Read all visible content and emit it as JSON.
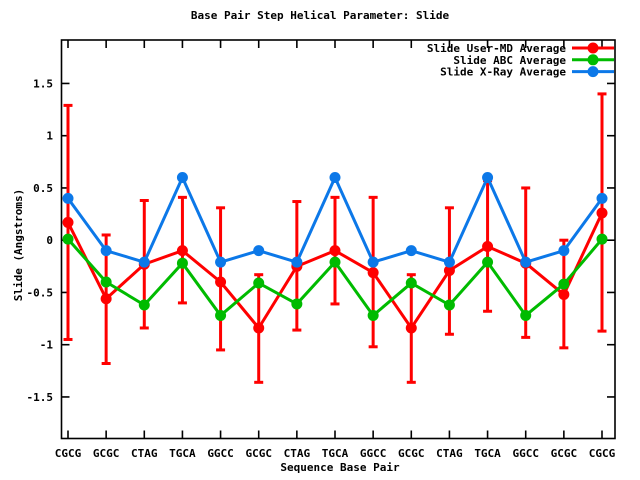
{
  "title": "Base Pair Step Helical Parameter: Slide",
  "axes": {
    "xlabel": "Sequence Base Pair",
    "ylabel": "Slide (Angstroms)"
  },
  "legend": {
    "entries": [
      {
        "label": "Slide User-MD Average",
        "color": "#ff0000"
      },
      {
        "label": "Slide ABC Average",
        "color": "#00bb00"
      },
      {
        "label": "Slide X-Ray Average",
        "color": "#0c78e8"
      }
    ],
    "position": "top-right-inside"
  },
  "chart_data": {
    "type": "line",
    "title": "Base Pair Step Helical Parameter: Slide",
    "xlabel": "Sequence Base Pair",
    "ylabel": "Slide (Angstroms)",
    "categories": [
      "CGCG",
      "GCGC",
      "CTAG",
      "TGCA",
      "GGCC",
      "GCGC",
      "CTAG",
      "TGCA",
      "GGCC",
      "GCGC",
      "CTAG",
      "TGCA",
      "GGCC",
      "GCGC",
      "CGCG"
    ],
    "series": [
      {
        "name": "Slide User-MD Average",
        "color": "#ff0000",
        "marker": "filled-circle",
        "values": [
          0.17,
          -0.56,
          -0.23,
          -0.1,
          -0.4,
          -0.84,
          -0.25,
          -0.1,
          -0.31,
          -0.84,
          -0.29,
          -0.06,
          -0.22,
          -0.52,
          0.26
        ],
        "err_low": [
          -0.95,
          -1.18,
          -0.84,
          -0.6,
          -1.05,
          -1.36,
          -0.86,
          -0.61,
          -1.02,
          -1.36,
          -0.9,
          -0.68,
          -0.93,
          -1.03,
          -0.87
        ],
        "err_high": [
          1.29,
          0.05,
          0.38,
          0.41,
          0.31,
          -0.33,
          0.37,
          0.41,
          0.41,
          -0.33,
          0.31,
          0.57,
          0.5,
          0.0,
          1.4
        ]
      },
      {
        "name": "Slide ABC Average",
        "color": "#00bb00",
        "marker": "filled-circle",
        "values": [
          0.01,
          -0.4,
          -0.62,
          -0.22,
          -0.72,
          -0.41,
          -0.61,
          -0.21,
          -0.72,
          -0.41,
          -0.62,
          -0.21,
          -0.72,
          -0.42,
          0.01
        ]
      },
      {
        "name": "Slide X-Ray Average",
        "color": "#0c78e8",
        "marker": "filled-circle",
        "values": [
          0.4,
          -0.1,
          -0.21,
          0.6,
          -0.21,
          -0.1,
          -0.21,
          0.6,
          -0.21,
          -0.1,
          -0.21,
          0.6,
          -0.21,
          -0.1,
          0.4
        ]
      }
    ],
    "yticks": [
      1.5,
      1,
      0.5,
      0,
      -0.5,
      -1,
      -1.5
    ],
    "ytick_labels": [
      "1.5",
      "1",
      "0.5",
      "0",
      "-0.5",
      "-1",
      "-1.5"
    ],
    "ylim": [
      -1.9,
      1.9
    ],
    "grid": false,
    "legend_position": "top-right-inside"
  }
}
